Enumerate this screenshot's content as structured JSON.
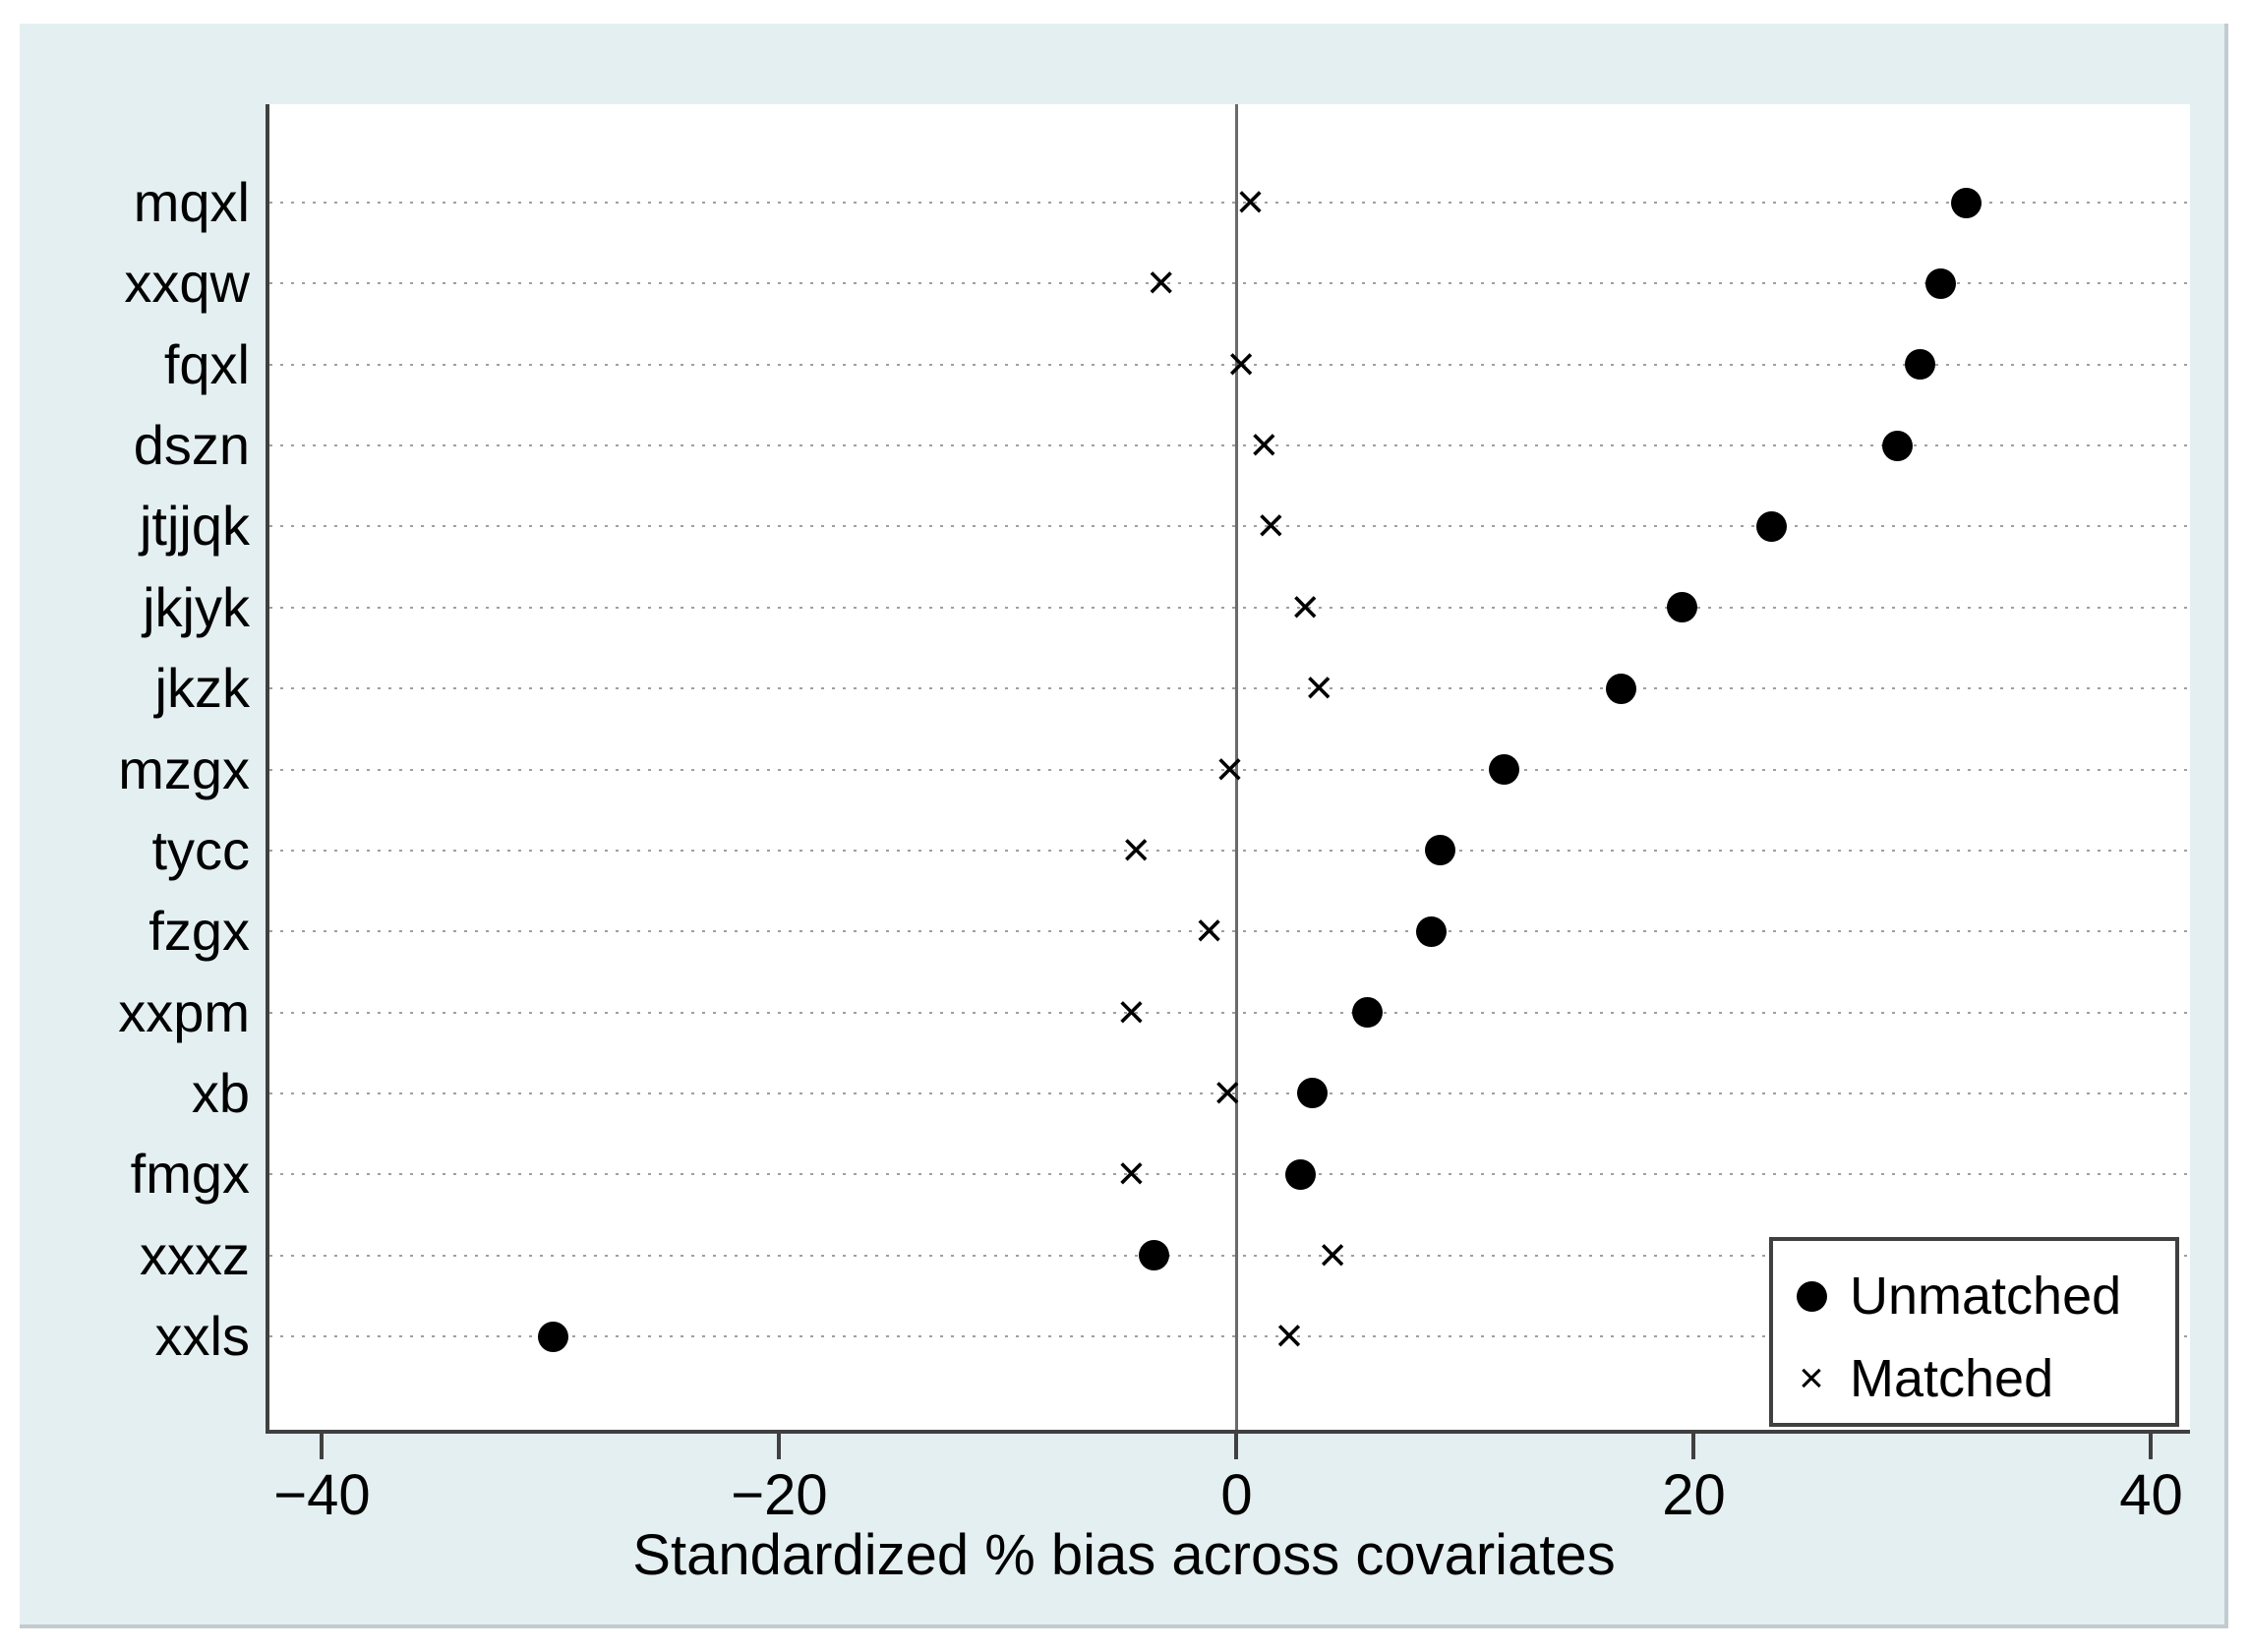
{
  "figure": {
    "page_background": "#ffffff",
    "region_background": "#e4eff1",
    "plot_background": "#ffffff",
    "axis_color": "#404040",
    "grid_color": "#9f9f9f",
    "zero_line_color": "#6a6a6a",
    "marker_color": "#000000"
  },
  "chart_data": {
    "type": "scatter",
    "title": "",
    "xlabel": "Standardized % bias across covariates",
    "ylabel": "",
    "categories": [
      "mqxl",
      "xxqw",
      "fqxl",
      "dszn",
      "jtjjqk",
      "jkjyk",
      "jkzk",
      "mzgx",
      "tycc",
      "fzgx",
      "xxpm",
      "xb",
      "fmgx",
      "xxxz",
      "xxls"
    ],
    "series": [
      {
        "name": "Unmatched",
        "marker": "dot",
        "marker_glyph": "●",
        "values": [
          31.9,
          30.8,
          29.9,
          28.9,
          23.4,
          19.5,
          16.8,
          11.7,
          8.9,
          8.5,
          5.7,
          3.3,
          2.8,
          -3.6,
          -29.9
        ]
      },
      {
        "name": "Matched",
        "marker": "x",
        "marker_glyph": "×",
        "values": [
          0.6,
          -3.3,
          0.2,
          1.2,
          1.5,
          3.0,
          3.6,
          -0.3,
          -4.4,
          -1.2,
          -4.6,
          -0.4,
          -4.6,
          4.2,
          2.3
        ]
      }
    ],
    "x_ticks": [
      -40,
      -20,
      0,
      20,
      40
    ],
    "x_tick_labels": [
      "−40",
      "−20",
      "0",
      "20",
      "40"
    ],
    "xlim": [
      -42.3,
      41.7
    ],
    "grid": "dotted-horizontal",
    "zero_reference_line": 0,
    "legend_position": "bottom-right"
  }
}
